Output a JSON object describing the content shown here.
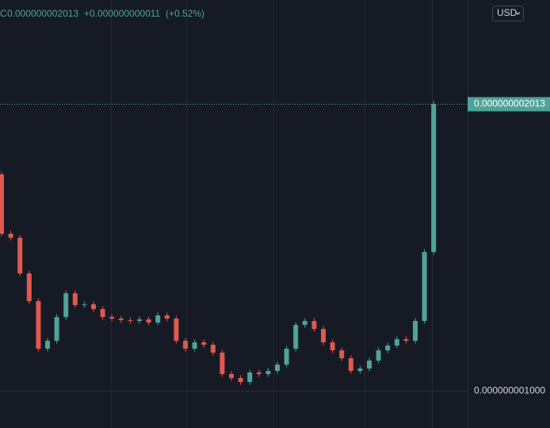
{
  "header": {
    "close_label": "C",
    "close": "0.000000002013",
    "change": "+0.000000000011",
    "change_pct": "(+0.52%)"
  },
  "currency": "USD",
  "chart_data": {
    "type": "candlestick",
    "up_color": "#4fa397",
    "down_color": "#e0594f",
    "ylim": [
      8.685e-10,
      2.3796e-09
    ],
    "yticks": [
      {
        "value": 1e-09,
        "label": "0.000000001000"
      }
    ],
    "last_price": {
      "value": 2.013e-09,
      "label": "0.000000002013"
    },
    "grid": true,
    "open": [
      1.764e-09,
      1.5542e-09,
      1.5402e-09,
      1.4143e-09,
      1.3164e-09,
      1.1485e-09,
      1.1765e-09,
      1.2604e-09,
      1.3443e-09,
      1.3024e-09,
      1.3052e-09,
      1.2884e-09,
      1.2604e-09,
      1.2548e-09,
      1.2492e-09,
      1.2464e-09,
      1.252e-09,
      1.2408e-09,
      1.266e-09,
      1.2548e-09,
      1.1765e-09,
      1.1485e-09,
      1.1709e-09,
      1.1625e-09,
      1.1345e-09,
      1.0589e-09,
      1.045e-09,
      1.031e-09,
      1.0645e-09,
      1.0589e-09,
      1.0701e-09,
      1.0925e-09,
      1.1485e-09,
      1.2324e-09,
      1.2464e-09,
      1.2184e-09,
      1.1709e-09,
      1.1429e-09,
      1.1149e-09,
      1.0701e-09,
      1.0785e-09,
      1.1065e-09,
      1.1429e-09,
      1.1597e-09,
      1.1821e-09,
      1.1765e-09,
      1.2464e-09,
      1.4898e-09
    ],
    "high": [
      1.774e-09,
      1.5642e-09,
      1.5502e-09,
      1.4243e-09,
      1.3264e-09,
      1.1865e-09,
      1.2704e-09,
      1.3543e-09,
      1.3543e-09,
      1.3152e-09,
      1.3152e-09,
      1.2984e-09,
      1.2704e-09,
      1.2648e-09,
      1.2592e-09,
      1.262e-09,
      1.262e-09,
      1.276e-09,
      1.276e-09,
      1.2648e-09,
      1.1865e-09,
      1.1809e-09,
      1.1809e-09,
      1.1725e-09,
      1.1445e-09,
      1.0689e-09,
      1.055e-09,
      1.0745e-09,
      1.0745e-09,
      1.0801e-09,
      1.1025e-09,
      1.1585e-09,
      1.2424e-09,
      1.2564e-09,
      1.2564e-09,
      1.2284e-09,
      1.1809e-09,
      1.1529e-09,
      1.1249e-09,
      1.0885e-09,
      1.1165e-09,
      1.1529e-09,
      1.1697e-09,
      1.1921e-09,
      1.1921e-09,
      1.2564e-09,
      1.4998e-09,
      2.023e-09
    ],
    "low": [
      1.5442e-09,
      1.5302e-09,
      1.4043e-09,
      1.3064e-09,
      1.1385e-09,
      1.1385e-09,
      1.1665e-09,
      1.2504e-09,
      1.2924e-09,
      1.2924e-09,
      1.2784e-09,
      1.2504e-09,
      1.2448e-09,
      1.2392e-09,
      1.2364e-09,
      1.2364e-09,
      1.2308e-09,
      1.2308e-09,
      1.2448e-09,
      1.1665e-09,
      1.1385e-09,
      1.1385e-09,
      1.1525e-09,
      1.1245e-09,
      1.0489e-09,
      1.035e-09,
      1.021e-09,
      1.021e-09,
      1.0489e-09,
      1.0489e-09,
      1.0601e-09,
      1.0825e-09,
      1.1385e-09,
      1.2224e-09,
      1.2084e-09,
      1.1609e-09,
      1.1329e-09,
      1.1049e-09,
      1.0601e-09,
      1.0601e-09,
      1.0685e-09,
      1.0965e-09,
      1.1329e-09,
      1.1497e-09,
      1.1665e-09,
      1.1665e-09,
      1.2364e-09,
      1.4798e-09
    ],
    "close": [
      1.5542e-09,
      1.5402e-09,
      1.4143e-09,
      1.3164e-09,
      1.1485e-09,
      1.1765e-09,
      1.2604e-09,
      1.3443e-09,
      1.3024e-09,
      1.3052e-09,
      1.2884e-09,
      1.2604e-09,
      1.2548e-09,
      1.2492e-09,
      1.2464e-09,
      1.252e-09,
      1.2408e-09,
      1.266e-09,
      1.2548e-09,
      1.1765e-09,
      1.1485e-09,
      1.1709e-09,
      1.1625e-09,
      1.1345e-09,
      1.0589e-09,
      1.045e-09,
      1.031e-09,
      1.0645e-09,
      1.0589e-09,
      1.0701e-09,
      1.0925e-09,
      1.1485e-09,
      1.2324e-09,
      1.2464e-09,
      1.2184e-09,
      1.1709e-09,
      1.1429e-09,
      1.1149e-09,
      1.0701e-09,
      1.0785e-09,
      1.1065e-09,
      1.1429e-09,
      1.1597e-09,
      1.1821e-09,
      1.1765e-09,
      1.2464e-09,
      1.4898e-09,
      2.013e-09
    ]
  }
}
